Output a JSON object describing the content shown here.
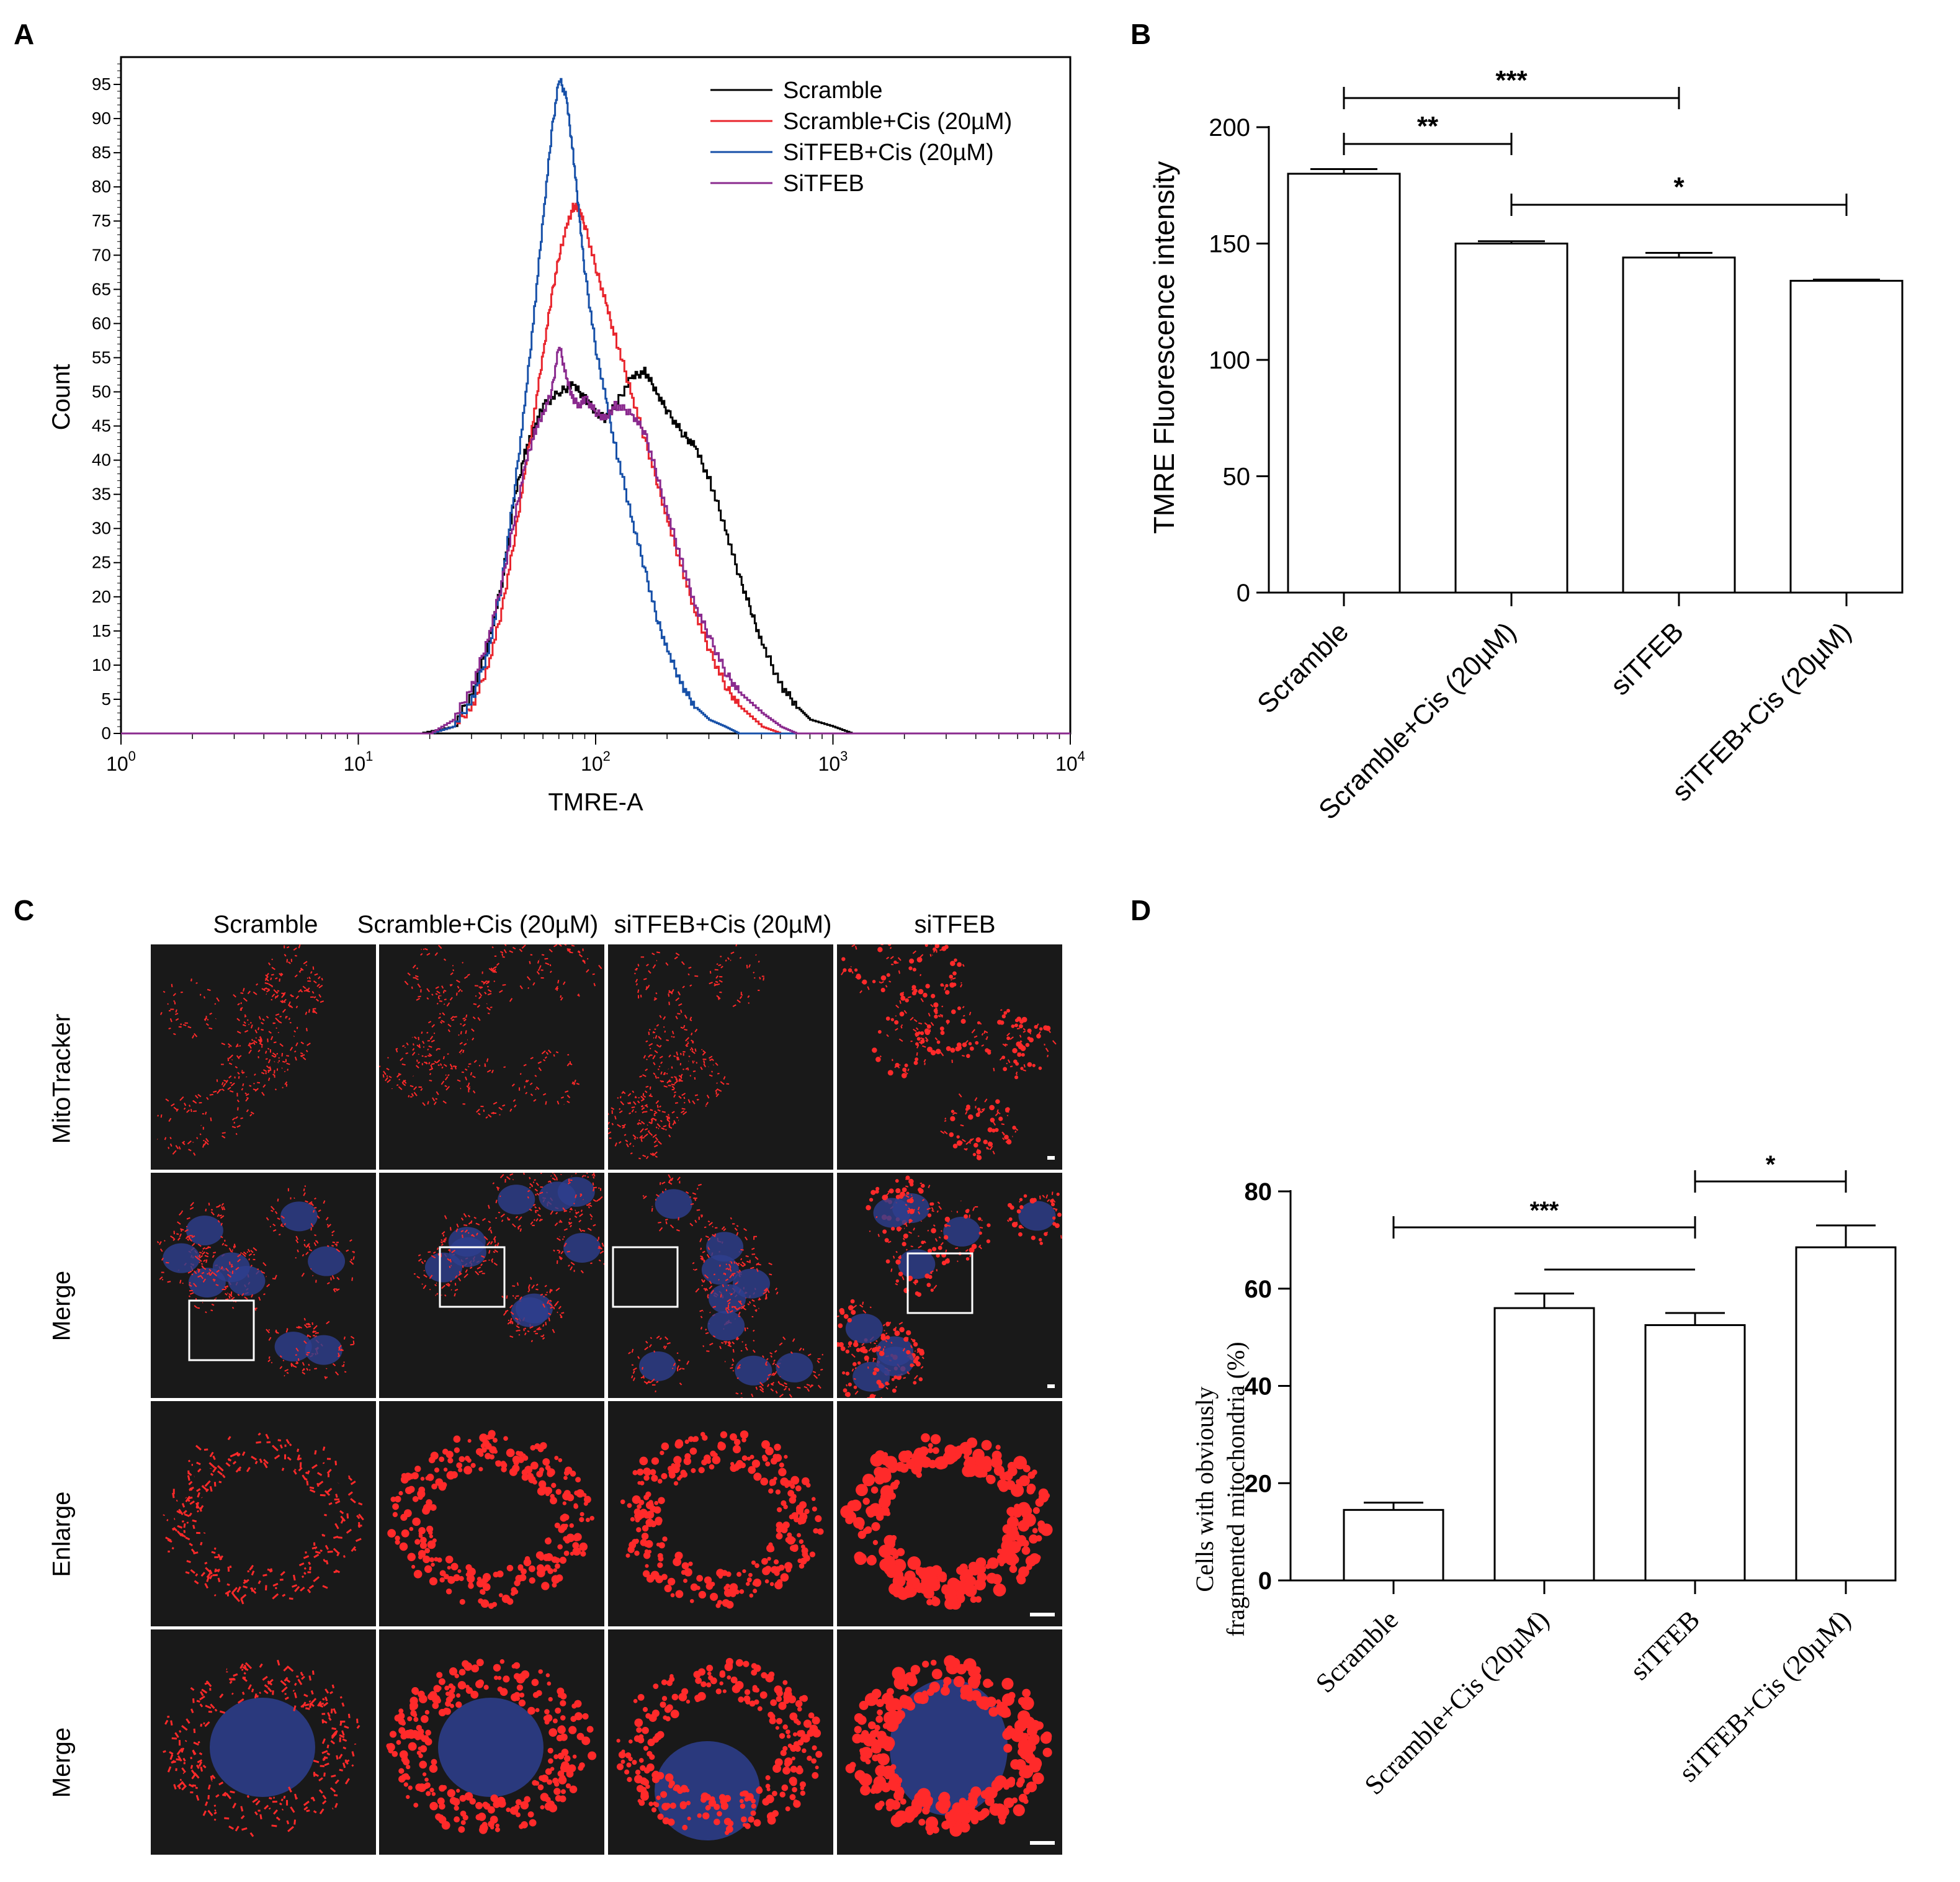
{
  "panels": {
    "A": "A",
    "B": "B",
    "C": "C",
    "D": "D"
  },
  "colors": {
    "scramble": "#000000",
    "scramble_cis": "#e8252d",
    "sitfeb_cis": "#1750a8",
    "sitfeb": "#8a2a8e",
    "mito": "#ff2a2a",
    "nucleus": "#2e3f8f",
    "bg": "#191919"
  },
  "chart_data": [
    {
      "id": "A",
      "type": "line",
      "title": "",
      "xlabel": "TMRE-A",
      "ylabel": "Count",
      "xscale": "log",
      "xlim": [
        1,
        10000
      ],
      "ylim": [
        0,
        99
      ],
      "xticks": [
        {
          "base": "10",
          "exp": "0",
          "value": 1
        },
        {
          "base": "10",
          "exp": "1",
          "value": 10
        },
        {
          "base": "10",
          "exp": "2",
          "value": 100
        },
        {
          "base": "10",
          "exp": "3",
          "value": 1000
        },
        {
          "base": "10",
          "exp": "4",
          "value": 10000
        }
      ],
      "yticks": [
        "0",
        "5",
        "10",
        "15",
        "20",
        "25",
        "30",
        "35",
        "40",
        "45",
        "50",
        "55",
        "60",
        "65",
        "70",
        "75",
        "80",
        "85",
        "90",
        "95"
      ],
      "legend_position": "top-right",
      "series": [
        {
          "name": "Scramble",
          "color": "#000000",
          "x": [
            5,
            10,
            18,
            25,
            30,
            35,
            40,
            45,
            50,
            55,
            60,
            70,
            80,
            90,
            100,
            110,
            120,
            140,
            160,
            180,
            200,
            230,
            260,
            300,
            350,
            400,
            450,
            500,
            600,
            700,
            800,
            1000,
            1200,
            1500
          ],
          "y": [
            0,
            0,
            0,
            1,
            6,
            13,
            22,
            34,
            41,
            45,
            48,
            50,
            51,
            49,
            47,
            46,
            48,
            52,
            53,
            50,
            47,
            44,
            42,
            37,
            30,
            23,
            18,
            13,
            7,
            4,
            2,
            1,
            0,
            0
          ]
        },
        {
          "name": "Scramble+Cis (20µM)",
          "color": "#e8252d",
          "x": [
            15,
            20,
            25,
            30,
            35,
            40,
            45,
            50,
            55,
            60,
            65,
            70,
            75,
            80,
            85,
            90,
            100,
            110,
            120,
            140,
            160,
            180,
            200,
            230,
            260,
            300,
            350,
            400,
            500,
            600,
            700
          ],
          "y": [
            0,
            0,
            1,
            4,
            10,
            18,
            28,
            38,
            47,
            56,
            64,
            70,
            74,
            77,
            77,
            74,
            68,
            63,
            58,
            50,
            43,
            37,
            31,
            24,
            18,
            12,
            7,
            4,
            1,
            0,
            0
          ]
        },
        {
          "name": "SiTFEB+Cis (20µM)",
          "color": "#1750a8",
          "x": [
            15,
            20,
            25,
            30,
            35,
            40,
            45,
            50,
            55,
            60,
            65,
            70,
            75,
            80,
            85,
            90,
            100,
            110,
            120,
            140,
            160,
            180,
            200,
            230,
            260,
            300,
            350,
            400,
            500
          ],
          "y": [
            0,
            0,
            1,
            5,
            12,
            22,
            35,
            48,
            62,
            76,
            88,
            96,
            93,
            85,
            76,
            67,
            56,
            49,
            42,
            32,
            24,
            17,
            12,
            7,
            4,
            2,
            1,
            0,
            0
          ]
        },
        {
          "name": "SiTFEB",
          "color": "#8a2a8e",
          "x": [
            15,
            20,
            25,
            30,
            35,
            40,
            45,
            50,
            55,
            60,
            65,
            70,
            75,
            80,
            85,
            90,
            100,
            110,
            120,
            140,
            160,
            180,
            200,
            230,
            260,
            300,
            350,
            400,
            500,
            600,
            700
          ],
          "y": [
            0,
            0,
            2,
            7,
            14,
            22,
            31,
            39,
            44,
            47,
            50,
            57,
            52,
            49,
            48,
            49,
            47,
            46,
            48,
            47,
            44,
            38,
            32,
            25,
            19,
            14,
            9,
            6,
            3,
            1,
            0
          ]
        }
      ]
    },
    {
      "id": "B",
      "type": "bar",
      "title": "",
      "xlabel": "",
      "ylabel": "TMRE Fluorescence intensity",
      "ylim": [
        0,
        200
      ],
      "yticks": [
        "0",
        "50",
        "100",
        "150",
        "200"
      ],
      "categories": [
        "Scramble",
        "Scramble+Cis (20µM)",
        "siTFEB",
        "siTFEB+Cis (20µM)"
      ],
      "values": [
        180,
        150,
        144,
        134
      ],
      "errors": [
        2,
        1,
        2,
        0.5
      ],
      "significance": [
        {
          "from": 0,
          "to": 1,
          "label": "**"
        },
        {
          "from": 0,
          "to": 2,
          "label": "***"
        },
        {
          "from": 1,
          "to": 3,
          "label": "*"
        }
      ]
    },
    {
      "id": "D",
      "type": "bar",
      "title": "",
      "xlabel": "",
      "ylabel_line1": "Cells with obviously",
      "ylabel_line2": "fragmented mitochondria (%)",
      "ylim": [
        0,
        80
      ],
      "yticks": [
        "0",
        "20",
        "40",
        "60",
        "80"
      ],
      "categories": [
        "Scramble",
        "Scramble+Cis (20µM)",
        "siTFEB",
        "siTFEB+Cis (20µM)"
      ],
      "values": [
        14.5,
        56,
        52.5,
        68.5
      ],
      "errors": [
        1.5,
        3,
        2.5,
        4.5
      ],
      "significance": [
        {
          "from": 0,
          "to": 2,
          "label": "***"
        },
        {
          "from": 2,
          "to": 3,
          "label": "*"
        }
      ]
    }
  ],
  "microscopy": {
    "columns": [
      "Scramble",
      "Scramble+Cis (20µM)",
      "siTFEB+Cis (20µM)",
      "siTFEB"
    ],
    "rows": [
      "MitoTracker",
      "Merge",
      "Enlarge",
      "Merge"
    ]
  }
}
